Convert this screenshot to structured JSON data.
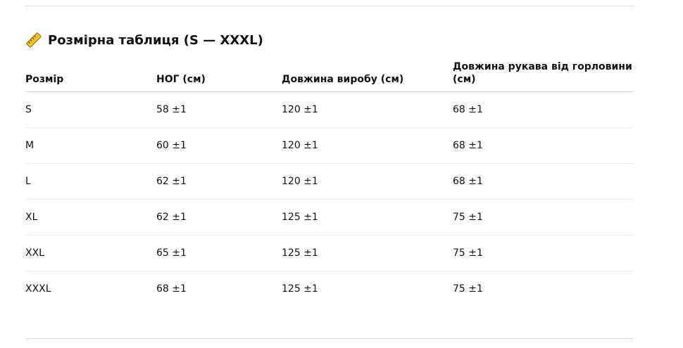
{
  "header": {
    "title": "Розмірна таблиця (S — XXXL)"
  },
  "table": {
    "columns": [
      "Розмір",
      "НОГ (см)",
      "Довжина виробу (см)",
      "Довжина рукава від горловини (см)"
    ],
    "rows": [
      [
        "S",
        "58 ±1",
        "120 ±1",
        "68 ±1"
      ],
      [
        "M",
        "60 ±1",
        "120 ±1",
        "68 ±1"
      ],
      [
        "L",
        "62 ±1",
        "120 ±1",
        "68 ±1"
      ],
      [
        "XL",
        "62 ±1",
        "125 ±1",
        "75 ±1"
      ],
      [
        "XXL",
        "65 ±1",
        "125 ±1",
        "75 ±1"
      ],
      [
        "XXXL",
        "68 ±1",
        "125 ±1",
        "75 ±1"
      ]
    ]
  }
}
